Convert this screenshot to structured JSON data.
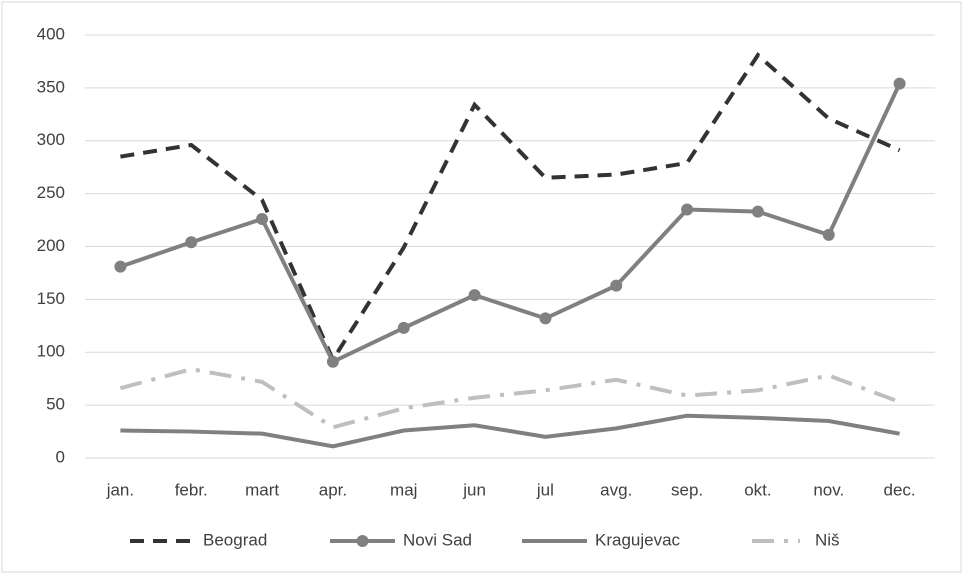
{
  "chart_data": {
    "type": "line",
    "categories": [
      "jan.",
      "febr.",
      "mart",
      "apr.",
      "maj",
      "jun",
      "jul",
      "avg.",
      "sep.",
      "okt.",
      "nov.",
      "dec."
    ],
    "series": [
      {
        "name": "Beograd",
        "color": "#333333",
        "line_style": "dashed",
        "marker": false,
        "values": [
          285,
          296,
          244,
          93,
          199,
          334,
          265,
          268,
          279,
          381,
          321,
          291
        ]
      },
      {
        "name": "Novi Sad",
        "color": "#808080",
        "line_style": "solid",
        "marker": true,
        "values": [
          181,
          204,
          226,
          91,
          123,
          154,
          132,
          163,
          235,
          233,
          211,
          354
        ]
      },
      {
        "name": "Kragujevac",
        "color": "#808080",
        "line_style": "solid",
        "marker": false,
        "values": [
          26,
          25,
          23,
          11,
          26,
          31,
          20,
          28,
          40,
          38,
          35,
          23
        ]
      },
      {
        "name": "Niš",
        "color": "#bfbfbf",
        "line_style": "dashdot",
        "marker": false,
        "values": [
          66,
          84,
          72,
          29,
          47,
          57,
          64,
          74,
          59,
          64,
          78,
          53
        ]
      }
    ],
    "ylim": [
      0,
      400
    ],
    "yticks": [
      0,
      50,
      100,
      150,
      200,
      250,
      300,
      350,
      400
    ],
    "grid": true,
    "legend": "bottom"
  }
}
